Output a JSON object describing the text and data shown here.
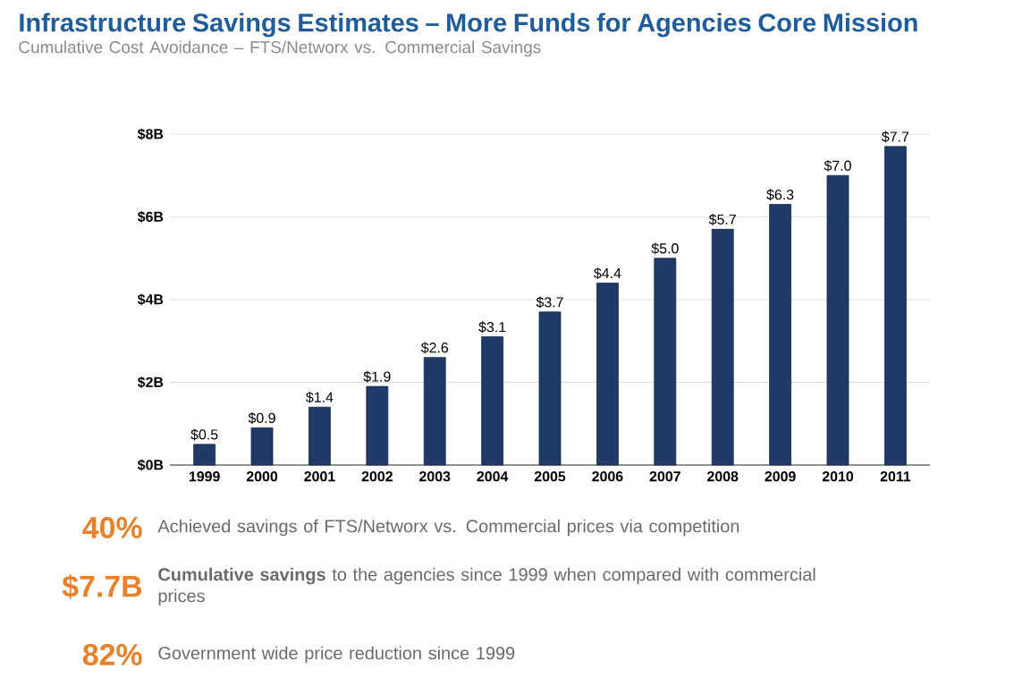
{
  "chart_data": {
    "type": "bar",
    "title": "Infrastructure Savings Estimates – More Funds for Agencies Core Mission",
    "subtitle": "Cumulative Cost Avoidance – FTS/Networx vs. Commercial Savings",
    "categories": [
      "1999",
      "2000",
      "2001",
      "2002",
      "2003",
      "2004",
      "2005",
      "2006",
      "2007",
      "2008",
      "2009",
      "2010",
      "2011"
    ],
    "values": [
      0.5,
      0.9,
      1.4,
      1.9,
      2.6,
      3.1,
      3.7,
      4.4,
      5.0,
      5.7,
      6.3,
      7.0,
      7.7
    ],
    "value_labels": [
      "$0.5",
      "$0.9",
      "$1.4",
      "$1.9",
      "$2.6",
      "$3.1",
      "$3.7",
      "$4.4",
      "$5.0",
      "$5.7",
      "$6.3",
      "$7.0",
      "$7.7"
    ],
    "color": "#1f3a66",
    "ylim": [
      0,
      8
    ],
    "yticks": [
      {
        "value": 0,
        "label": "$0B"
      },
      {
        "value": 2,
        "label": "$2B"
      },
      {
        "value": 4,
        "label": "$4B"
      },
      {
        "value": 6,
        "label": "$6B"
      },
      {
        "value": 8,
        "label": "$8B"
      }
    ],
    "grid": "y",
    "annotations": [
      "40%",
      "Achieved savings of FTS/Networx vs. Commercial prices via competition",
      "$7.7B",
      "**Cumulative savings** to the agencies since 1999 when compared with commercial prices",
      "82%",
      "Government wide price reduction since 1999"
    ]
  }
}
